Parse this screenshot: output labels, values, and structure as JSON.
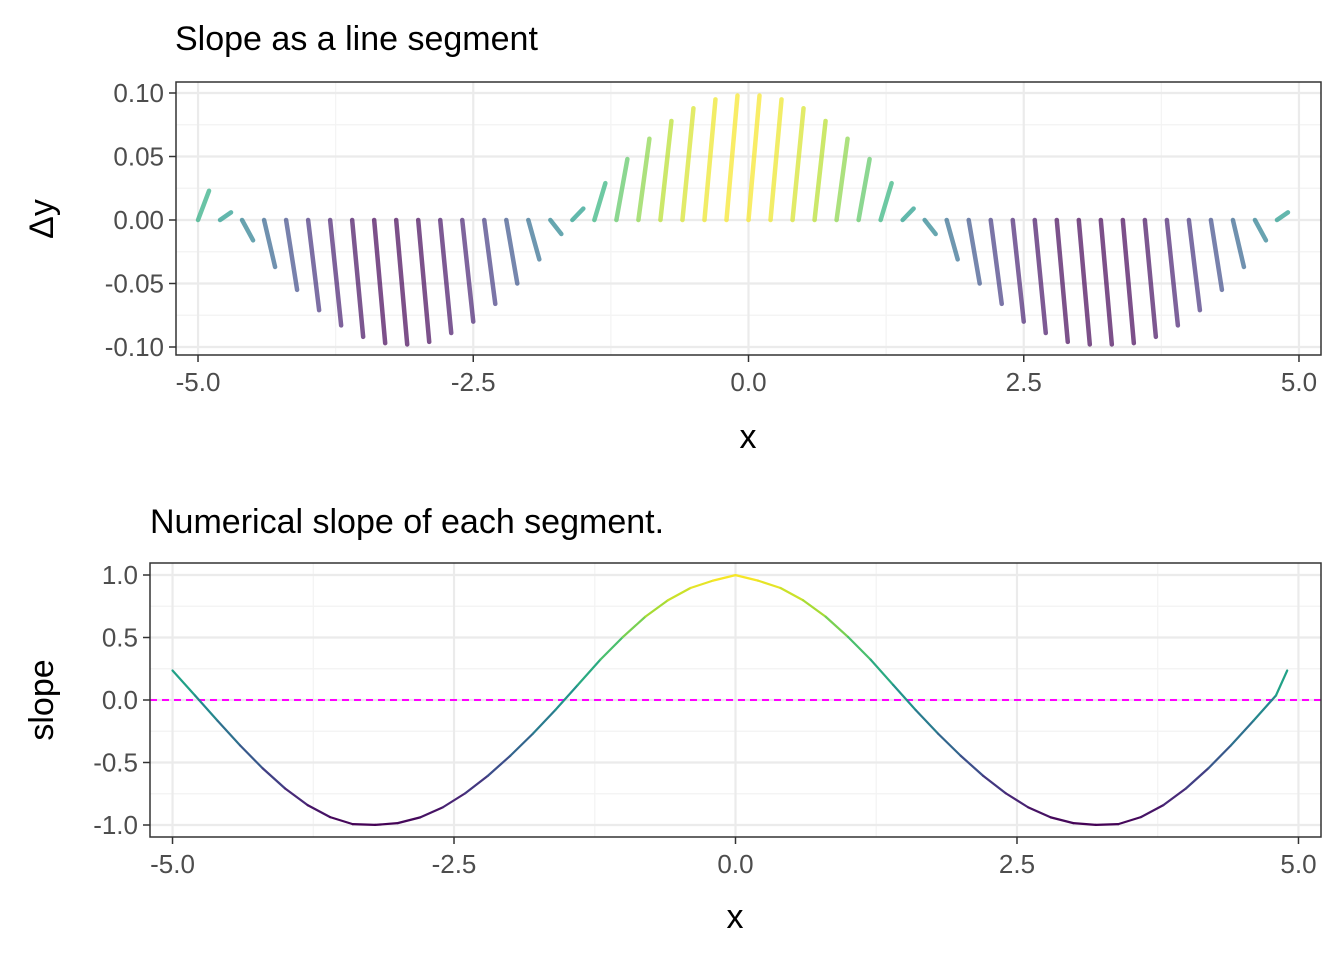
{
  "chart_data": [
    {
      "type": "segments",
      "title": "Slope as a line segment",
      "xlabel": "x",
      "ylabel": "Δy",
      "xlim": [
        -5.2,
        5.2
      ],
      "ylim": [
        -0.1,
        0.1
      ],
      "x_ticks": [
        -5.0,
        -2.5,
        0.0,
        2.5,
        5.0
      ],
      "x_tick_labels": [
        "-5.0",
        "-2.5",
        "0.0",
        "2.5",
        "5.0"
      ],
      "y_ticks": [
        -0.1,
        -0.05,
        0.0,
        0.05,
        0.1
      ],
      "y_tick_labels": [
        "-0.10",
        "-0.05",
        "0.00",
        "0.05",
        "0.10"
      ],
      "grid": true,
      "color_scale": "viridis (by slope)",
      "x_start": [
        -5.0,
        -4.8,
        -4.6,
        -4.4,
        -4.2,
        -4.0,
        -3.8,
        -3.6,
        -3.4,
        -3.2,
        -3.0,
        -2.8,
        -2.6,
        -2.4,
        -2.2,
        -2.0,
        -1.8,
        -1.6,
        -1.4,
        -1.2,
        -1.0,
        -0.8,
        -0.6,
        -0.4,
        -0.2,
        0.0,
        0.2,
        0.4,
        0.6,
        0.8,
        1.0,
        1.2,
        1.4,
        1.6,
        1.8,
        2.0,
        2.2,
        2.4,
        2.6,
        2.8,
        3.0,
        3.2,
        3.4,
        3.6,
        3.8,
        4.0,
        4.2,
        4.4,
        4.6,
        4.8
      ],
      "dx": 0.1,
      "dy": [
        0.023,
        0.006,
        -0.016,
        -0.037,
        -0.055,
        -0.071,
        -0.083,
        -0.092,
        -0.097,
        -0.098,
        -0.096,
        -0.089,
        -0.08,
        -0.066,
        -0.05,
        -0.031,
        -0.011,
        0.009,
        0.029,
        0.048,
        0.064,
        0.078,
        0.088,
        0.095,
        0.098,
        0.098,
        0.095,
        0.088,
        0.078,
        0.064,
        0.048,
        0.029,
        0.009,
        -0.011,
        -0.031,
        -0.05,
        -0.066,
        -0.08,
        -0.089,
        -0.096,
        -0.098,
        -0.098,
        -0.097,
        -0.092,
        -0.083,
        -0.071,
        -0.055,
        -0.037,
        -0.016,
        0.006
      ]
    },
    {
      "type": "line",
      "title": "Numerical slope of each segment.",
      "xlabel": "x",
      "ylabel": "slope",
      "xlim": [
        -5.2,
        5.2
      ],
      "ylim": [
        -1.0,
        1.0
      ],
      "x_ticks": [
        -5.0,
        -2.5,
        0.0,
        2.5,
        5.0
      ],
      "x_tick_labels": [
        "-5.0",
        "-2.5",
        "0.0",
        "2.5",
        "5.0"
      ],
      "y_ticks": [
        -1.0,
        -0.5,
        0.0,
        0.5,
        1.0
      ],
      "y_tick_labels": [
        "-1.0",
        "-0.5",
        "0.0",
        "0.5",
        "1.0"
      ],
      "grid": true,
      "x": [
        -5.0,
        -4.8,
        -4.6,
        -4.4,
        -4.2,
        -4.0,
        -3.8,
        -3.6,
        -3.4,
        -3.2,
        -3.0,
        -2.8,
        -2.6,
        -2.4,
        -2.2,
        -2.0,
        -1.8,
        -1.6,
        -1.4,
        -1.2,
        -1.0,
        -0.8,
        -0.6,
        -0.4,
        -0.2,
        0.0,
        0.2,
        0.4,
        0.6,
        0.8,
        1.0,
        1.2,
        1.4,
        1.6,
        1.8,
        2.0,
        2.2,
        2.4,
        2.6,
        2.8,
        3.0,
        3.2,
        3.4,
        3.6,
        3.8,
        4.0,
        4.2,
        4.4,
        4.6,
        4.8,
        4.9
      ],
      "y": [
        0.236,
        0.036,
        -0.166,
        -0.363,
        -0.546,
        -0.708,
        -0.841,
        -0.937,
        -0.993,
        -0.999,
        -0.985,
        -0.939,
        -0.859,
        -0.746,
        -0.607,
        -0.446,
        -0.27,
        -0.08,
        0.121,
        0.323,
        0.504,
        0.667,
        0.798,
        0.896,
        0.955,
        0.999,
        0.955,
        0.896,
        0.798,
        0.667,
        0.504,
        0.323,
        0.121,
        -0.08,
        -0.27,
        -0.446,
        -0.607,
        -0.746,
        -0.859,
        -0.939,
        -0.985,
        -0.999,
        -0.993,
        -0.937,
        -0.841,
        -0.708,
        -0.546,
        -0.363,
        -0.166,
        0.036,
        0.236
      ],
      "reference_line": {
        "y": 0,
        "style": "dashed",
        "color": "#ff00ff"
      },
      "color_scale": "viridis (by slope)"
    }
  ],
  "colors": {
    "panel_border": "#333333",
    "grid_major": "#ebebeb",
    "grid_minor": "#f3f3f3",
    "tick_label": "#4d4d4d",
    "reference_line": "#ff00ff"
  }
}
